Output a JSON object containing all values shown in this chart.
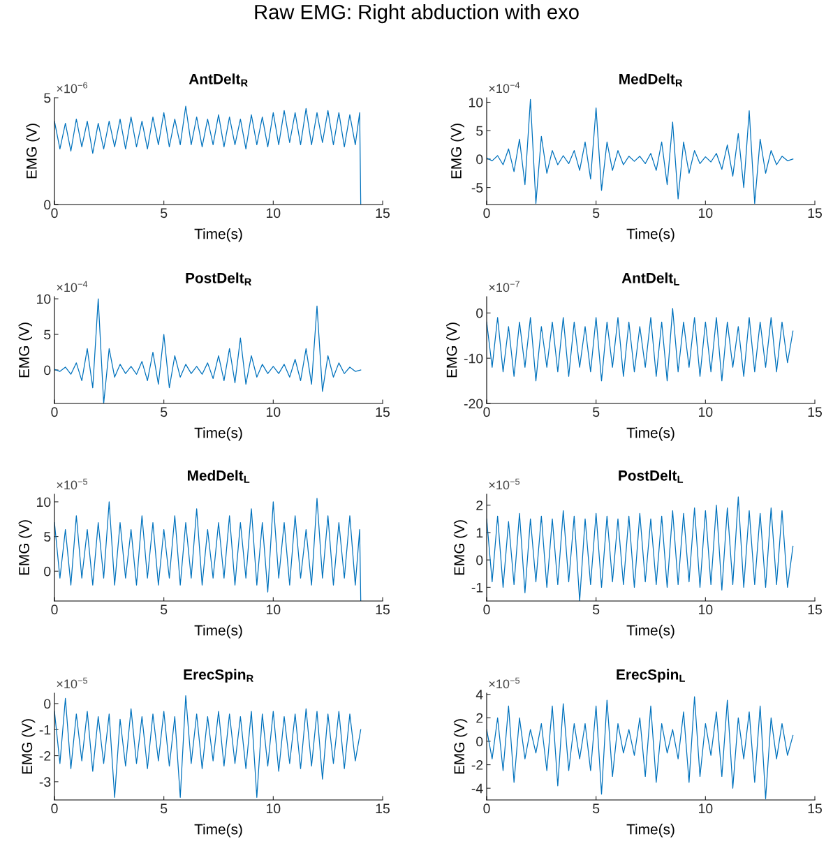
{
  "chart_data": [
    {
      "type": "line",
      "title": "AntDelt$_{R}$",
      "xlabel": "Time(s)",
      "ylabel": "EMG (V)",
      "annotations": [
        "×10$^{−6}$",
        "Raw EMG: Right abduction with exo"
      ],
      "xlim": [
        0,
        15
      ],
      "xticks": [
        0,
        5,
        10,
        15
      ],
      "ylim": [
        0,
        5
      ],
      "yticks": [
        0,
        5
      ],
      "x": [
        0,
        0.25,
        0.5,
        0.75,
        1,
        1.25,
        1.5,
        1.75,
        2,
        2.25,
        2.5,
        2.75,
        3,
        3.25,
        3.5,
        3.75,
        4,
        4.25,
        4.5,
        4.75,
        5,
        5.25,
        5.5,
        5.75,
        6,
        6.25,
        6.5,
        6.75,
        7,
        7.25,
        7.5,
        7.75,
        8,
        8.25,
        8.5,
        8.75,
        9,
        9.25,
        9.5,
        9.75,
        10,
        10.25,
        10.5,
        10.75,
        11,
        11.25,
        11.5,
        11.75,
        12,
        12.25,
        12.5,
        12.75,
        13,
        13.25,
        13.5,
        13.75,
        13.95,
        14
      ],
      "series": [
        {
          "color": "#0072bd",
          "values": [
            3.9,
            2.6,
            3.8,
            2.5,
            4.0,
            2.7,
            3.9,
            2.4,
            3.8,
            2.6,
            3.9,
            2.7,
            4.0,
            2.6,
            4.1,
            2.7,
            3.9,
            2.6,
            4.1,
            2.8,
            4.3,
            2.7,
            4.0,
            2.8,
            4.6,
            2.8,
            4.1,
            2.7,
            4.0,
            2.8,
            4.2,
            2.7,
            4.1,
            2.8,
            4.0,
            2.6,
            4.2,
            2.8,
            4.1,
            2.7,
            4.3,
            2.8,
            4.4,
            2.9,
            4.3,
            2.8,
            4.5,
            2.8,
            4.3,
            2.9,
            4.4,
            2.8,
            4.3,
            2.7,
            4.2,
            2.8,
            4.3,
            0.0
          ]
        }
      ]
    },
    {
      "type": "line",
      "title": "MedDelt$_{R}$",
      "xlabel": "Time(s)",
      "ylabel": "EMG (V)",
      "annotations": [
        "×10$^{−4}$"
      ],
      "xlim": [
        0,
        15
      ],
      "xticks": [
        0,
        5,
        10,
        15
      ],
      "ylim": [
        -8,
        10.8
      ],
      "yticks": [
        -5,
        0,
        5,
        10
      ],
      "x": [
        0,
        0.25,
        0.5,
        0.75,
        1,
        1.25,
        1.5,
        1.75,
        2,
        2.25,
        2.5,
        2.75,
        3,
        3.25,
        3.5,
        3.75,
        4,
        4.25,
        4.5,
        4.75,
        5,
        5.25,
        5.5,
        5.75,
        6,
        6.25,
        6.5,
        6.75,
        7,
        7.25,
        7.5,
        7.75,
        8,
        8.25,
        8.5,
        8.75,
        9,
        9.25,
        9.5,
        9.75,
        10,
        10.25,
        10.5,
        10.75,
        11,
        11.25,
        11.5,
        11.75,
        12,
        12.25,
        12.5,
        12.75,
        13,
        13.25,
        13.5,
        13.75,
        14
      ],
      "series": [
        {
          "color": "#0072bd",
          "values": [
            0.2,
            -0.3,
            0.6,
            -1.0,
            1.8,
            -2.2,
            3.5,
            -4.5,
            10.5,
            -7.8,
            4.0,
            -2.5,
            1.5,
            -1.0,
            0.6,
            -0.8,
            1.5,
            -2.0,
            3.0,
            -3.5,
            9.0,
            -5.5,
            3.0,
            -2.0,
            1.5,
            -1.0,
            0.5,
            -0.4,
            0.5,
            -0.8,
            1.0,
            -2.0,
            3.0,
            -4.5,
            6.5,
            -7.0,
            3.0,
            -2.5,
            1.5,
            -0.8,
            0.4,
            -0.5,
            1.0,
            -1.8,
            2.5,
            -3.0,
            4.5,
            -5.0,
            8.5,
            -7.8,
            3.5,
            -2.5,
            1.5,
            -1.0,
            0.5,
            -0.3,
            0.0
          ]
        }
      ]
    },
    {
      "type": "line",
      "title": "PostDelt$_{R}$",
      "xlabel": "Time(s)",
      "ylabel": "EMG (V)",
      "annotations": [
        "×10$^{−4}$"
      ],
      "xlim": [
        0,
        15
      ],
      "xticks": [
        0,
        5,
        10,
        15
      ],
      "ylim": [
        -4.7,
        10.3
      ],
      "yticks": [
        0,
        5,
        10
      ],
      "x": [
        0,
        0.25,
        0.5,
        0.75,
        1,
        1.25,
        1.5,
        1.75,
        2,
        2.25,
        2.5,
        2.75,
        3,
        3.25,
        3.5,
        3.75,
        4,
        4.25,
        4.5,
        4.75,
        5,
        5.25,
        5.5,
        5.75,
        6,
        6.25,
        6.5,
        6.75,
        7,
        7.25,
        7.5,
        7.75,
        8,
        8.25,
        8.5,
        8.75,
        9,
        9.25,
        9.5,
        9.75,
        10,
        10.25,
        10.5,
        10.75,
        11,
        11.25,
        11.5,
        11.75,
        12,
        12.25,
        12.5,
        12.75,
        13,
        13.25,
        13.5,
        13.75,
        14
      ],
      "series": [
        {
          "color": "#0072bd",
          "values": [
            0.1,
            -0.2,
            0.4,
            -0.6,
            1.0,
            -1.5,
            3.0,
            -2.5,
            10.0,
            -4.7,
            3.0,
            -1.0,
            0.8,
            -0.5,
            0.5,
            -0.6,
            1.2,
            -1.5,
            2.5,
            -2.0,
            5.0,
            -2.5,
            2.0,
            -1.0,
            0.8,
            -0.5,
            0.5,
            -0.6,
            1.0,
            -1.2,
            2.0,
            -1.5,
            3.0,
            -1.8,
            4.5,
            -2.0,
            2.0,
            -1.0,
            0.8,
            -0.5,
            0.5,
            -0.5,
            0.8,
            -1.0,
            1.5,
            -1.5,
            3.0,
            -2.0,
            9.0,
            -3.0,
            2.0,
            -1.0,
            1.0,
            -0.5,
            0.4,
            -0.2,
            0.0
          ]
        }
      ]
    },
    {
      "type": "line",
      "title": "AntDelt$_{L}$",
      "xlabel": "Time(s)",
      "ylabel": "EMG (V)",
      "annotations": [
        "×10$^{−7}$"
      ],
      "xlim": [
        0,
        15
      ],
      "xticks": [
        0,
        5,
        10,
        15
      ],
      "ylim": [
        -20,
        3.6
      ],
      "yticks": [
        -20,
        -10,
        0
      ],
      "x": [
        0,
        0.25,
        0.5,
        0.75,
        1,
        1.25,
        1.5,
        1.75,
        2,
        2.25,
        2.5,
        2.75,
        3,
        3.25,
        3.5,
        3.75,
        4,
        4.25,
        4.5,
        4.75,
        5,
        5.25,
        5.5,
        5.75,
        6,
        6.25,
        6.5,
        6.75,
        7,
        7.25,
        7.5,
        7.75,
        8,
        8.25,
        8.5,
        8.75,
        9,
        9.25,
        9.5,
        9.75,
        10,
        10.25,
        10.5,
        10.75,
        11,
        11.25,
        11.5,
        11.75,
        12,
        12.25,
        12.5,
        12.75,
        13,
        13.25,
        13.5,
        13.75,
        14
      ],
      "series": [
        {
          "color": "#0072bd",
          "values": [
            -2,
            -12,
            -1,
            -13,
            -3,
            -14,
            -2,
            -12,
            -1,
            -15,
            -3,
            -12,
            -2,
            -13,
            -1,
            -14,
            -2,
            -12,
            -3,
            -13,
            -1,
            -15,
            -2,
            -12,
            -1,
            -14,
            -2,
            -13,
            -3,
            -12,
            -1,
            -14,
            -2,
            -15,
            1,
            -13,
            -2,
            -12,
            -1,
            -14,
            -2,
            -13,
            -1,
            -15,
            -2,
            -12,
            -3,
            -14,
            -1,
            -13,
            -2,
            -12,
            -1,
            -13,
            -2,
            -11,
            -4
          ]
        }
      ]
    },
    {
      "type": "line",
      "title": "MedDelt$_{L}$",
      "xlabel": "Time(s)",
      "ylabel": "EMG (V)",
      "annotations": [
        "×10$^{−5}$"
      ],
      "xlim": [
        0,
        15
      ],
      "xticks": [
        0,
        5,
        10,
        15
      ],
      "ylim": [
        -4.3,
        11.1
      ],
      "yticks": [
        0,
        5,
        10
      ],
      "x": [
        0,
        0.25,
        0.5,
        0.75,
        1,
        1.25,
        1.5,
        1.75,
        2,
        2.25,
        2.5,
        2.75,
        3,
        3.25,
        3.5,
        3.75,
        4,
        4.25,
        4.5,
        4.75,
        5,
        5.25,
        5.5,
        5.75,
        6,
        6.25,
        6.5,
        6.75,
        7,
        7.25,
        7.5,
        7.75,
        8,
        8.25,
        8.5,
        8.75,
        9,
        9.25,
        9.5,
        9.75,
        10,
        10.25,
        10.5,
        10.75,
        11,
        11.25,
        11.5,
        11.75,
        12,
        12.25,
        12.5,
        12.75,
        13,
        13.25,
        13.5,
        13.75,
        13.95,
        14
      ],
      "series": [
        {
          "color": "#0072bd",
          "values": [
            7,
            -1,
            6,
            -2,
            8,
            -1,
            6,
            -2,
            7,
            -1,
            10,
            -2,
            7,
            -1,
            6,
            -2,
            8,
            -1,
            7,
            -2,
            6,
            -1,
            8,
            -2,
            7,
            -1,
            9,
            -2,
            6,
            -1,
            7,
            -1,
            8,
            -2,
            7,
            -1,
            9,
            -2,
            7,
            -3,
            10,
            -1,
            7,
            -2,
            8,
            -1,
            6,
            -2,
            10.5,
            -1,
            8,
            -2,
            7,
            -1,
            8,
            -2,
            6,
            -4.3
          ]
        }
      ]
    },
    {
      "type": "line",
      "title": "PostDelt$_{L}$",
      "xlabel": "Time(s)",
      "ylabel": "EMG (V)",
      "annotations": [
        "×10$^{−5}$"
      ],
      "xlim": [
        0,
        15
      ],
      "xticks": [
        0,
        5,
        10,
        15
      ],
      "ylim": [
        -1.5,
        2.4
      ],
      "yticks": [
        -1,
        0,
        1,
        2
      ],
      "x": [
        0,
        0.25,
        0.5,
        0.75,
        1,
        1.25,
        1.5,
        1.75,
        2,
        2.25,
        2.5,
        2.75,
        3,
        3.25,
        3.5,
        3.75,
        4,
        4.25,
        4.5,
        4.75,
        5,
        5.25,
        5.5,
        5.75,
        6,
        6.25,
        6.5,
        6.75,
        7,
        7.25,
        7.5,
        7.75,
        8,
        8.25,
        8.5,
        8.75,
        9,
        9.25,
        9.5,
        9.75,
        10,
        10.25,
        10.5,
        10.75,
        11,
        11.25,
        11.5,
        11.75,
        12,
        12.25,
        12.5,
        12.75,
        13,
        13.25,
        13.5,
        13.75,
        14
      ],
      "series": [
        {
          "color": "#0072bd",
          "values": [
            1.5,
            -0.8,
            1.6,
            -1.0,
            1.4,
            -0.9,
            1.7,
            -1.2,
            1.5,
            -0.8,
            1.6,
            -1.0,
            1.5,
            -0.9,
            1.8,
            -0.8,
            1.6,
            -1.5,
            1.5,
            -0.9,
            1.7,
            -1.0,
            1.6,
            -0.8,
            1.5,
            -0.9,
            1.6,
            -1.0,
            1.7,
            -0.8,
            1.5,
            -0.9,
            1.6,
            -1.0,
            1.8,
            -0.9,
            1.7,
            -0.8,
            1.9,
            -1.0,
            1.8,
            -0.9,
            2.0,
            -1.1,
            1.9,
            -0.9,
            2.3,
            -1.0,
            1.8,
            -0.9,
            1.7,
            -1.0,
            1.9,
            -0.9,
            1.8,
            -1.0,
            0.5
          ]
        }
      ]
    },
    {
      "type": "line",
      "title": "ErecSpin$_{R}$",
      "xlabel": "Time(s)",
      "ylabel": "EMG (V)",
      "annotations": [
        "×10$^{−5}$"
      ],
      "xlim": [
        0,
        15
      ],
      "xticks": [
        0,
        5,
        10,
        15
      ],
      "ylim": [
        -3.7,
        0.4
      ],
      "yticks": [
        -3,
        -2,
        -1,
        0
      ],
      "x": [
        0,
        0.25,
        0.5,
        0.75,
        1,
        1.25,
        1.5,
        1.75,
        2,
        2.25,
        2.5,
        2.75,
        3,
        3.25,
        3.5,
        3.75,
        4,
        4.25,
        4.5,
        4.75,
        5,
        5.25,
        5.5,
        5.75,
        6,
        6.25,
        6.5,
        6.75,
        7,
        7.25,
        7.5,
        7.75,
        8,
        8.25,
        8.5,
        8.75,
        9,
        9.25,
        9.5,
        9.75,
        10,
        10.25,
        10.5,
        10.75,
        11,
        11.25,
        11.5,
        11.75,
        12,
        12.25,
        12.5,
        12.75,
        13,
        13.25,
        13.5,
        13.75,
        14
      ],
      "series": [
        {
          "color": "#0072bd",
          "values": [
            -0.3,
            -2.3,
            0.2,
            -2.5,
            -0.4,
            -2.2,
            -0.3,
            -2.6,
            -0.5,
            -2.3,
            -0.4,
            -3.6,
            -0.6,
            -2.4,
            -0.2,
            -2.3,
            -0.5,
            -2.5,
            -0.4,
            -2.2,
            -0.3,
            -2.4,
            -0.5,
            -3.6,
            0.3,
            -2.3,
            -0.4,
            -2.5,
            -0.5,
            -2.2,
            -0.3,
            -2.4,
            -0.4,
            -2.3,
            -0.5,
            -2.5,
            -0.3,
            -3.6,
            -0.4,
            -2.4,
            -0.3,
            -2.6,
            -0.5,
            -2.3,
            -0.4,
            -2.5,
            -0.2,
            -2.4,
            -0.3,
            -2.9,
            -0.4,
            -2.3,
            -0.3,
            -2.5,
            -0.4,
            -2.2,
            -1.0
          ]
        }
      ]
    },
    {
      "type": "line",
      "title": "ErecSpin$_{L}$",
      "xlabel": "Time(s)",
      "ylabel": "EMG (V)",
      "annotations": [
        "×10$^{−5}$"
      ],
      "xlim": [
        0,
        15
      ],
      "xticks": [
        0,
        5,
        10,
        15
      ],
      "ylim": [
        -5,
        4.1
      ],
      "yticks": [
        -4,
        -2,
        0,
        2,
        4
      ],
      "x": [
        0,
        0.25,
        0.5,
        0.75,
        1,
        1.25,
        1.5,
        1.75,
        2,
        2.25,
        2.5,
        2.75,
        3,
        3.25,
        3.5,
        3.75,
        4,
        4.25,
        4.5,
        4.75,
        5,
        5.25,
        5.5,
        5.75,
        6,
        6.25,
        6.5,
        6.75,
        7,
        7.25,
        7.5,
        7.75,
        8,
        8.25,
        8.5,
        8.75,
        9,
        9.25,
        9.5,
        9.75,
        10,
        10.25,
        10.5,
        10.75,
        11,
        11.25,
        11.5,
        11.75,
        12,
        12.25,
        12.5,
        12.75,
        13,
        13.25,
        13.5,
        13.75,
        14
      ],
      "series": [
        {
          "color": "#0072bd",
          "values": [
            1.0,
            -1.5,
            2.0,
            -2.5,
            3.0,
            -3.5,
            2.0,
            -1.5,
            1.0,
            -1.0,
            1.5,
            -2.5,
            3.0,
            -3.8,
            3.2,
            -2.5,
            1.5,
            -1.5,
            1.5,
            -2.5,
            3.0,
            -4.5,
            3.5,
            -3.0,
            1.5,
            -1.0,
            1.0,
            -1.2,
            2.0,
            -3.0,
            3.0,
            -3.5,
            1.5,
            -1.0,
            1.0,
            -1.5,
            2.5,
            -3.5,
            3.8,
            -3.0,
            1.5,
            -1.2,
            2.5,
            -3.0,
            3.5,
            -4.0,
            2.0,
            -1.5,
            2.5,
            -3.5,
            3.0,
            -4.9,
            2.0,
            -1.5,
            1.5,
            -1.2,
            0.5
          ]
        }
      ]
    }
  ]
}
